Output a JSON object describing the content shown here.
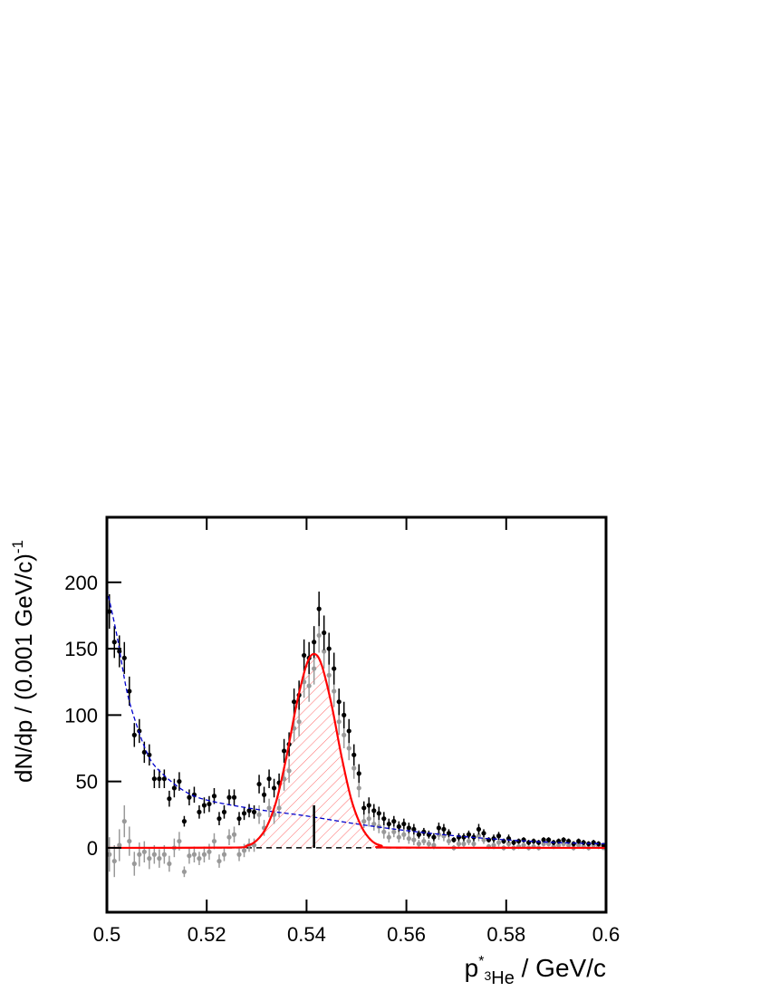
{
  "chart_data": {
    "type": "scatter",
    "xlabel": {
      "base": "p",
      "star": "*",
      "pre_sub": "3",
      "sub": "He",
      "rest": " / GeV/c"
    },
    "ylabel": {
      "text": "dN/dp / (0.001 GeV/c)",
      "exponent": "-1"
    },
    "xlim": [
      0.5,
      0.6
    ],
    "ylim": [
      -48.5,
      249
    ],
    "xticks": [
      0.5,
      0.52,
      0.54,
      0.56,
      0.58,
      0.6
    ],
    "yticks": [
      0,
      50,
      100,
      150,
      200
    ],
    "x": [
      0.5005,
      0.5015,
      0.5025,
      0.5035,
      0.5045,
      0.5055,
      0.5065,
      0.5075,
      0.5085,
      0.5095,
      0.5105,
      0.5115,
      0.5125,
      0.5135,
      0.5145,
      0.5155,
      0.5165,
      0.5175,
      0.5185,
      0.5195,
      0.5205,
      0.5215,
      0.5225,
      0.5235,
      0.5245,
      0.5255,
      0.5265,
      0.5275,
      0.5285,
      0.5295,
      0.5305,
      0.5315,
      0.5325,
      0.5335,
      0.5345,
      0.5355,
      0.5365,
      0.5375,
      0.5385,
      0.5395,
      0.5405,
      0.5415,
      0.5425,
      0.5435,
      0.5445,
      0.5455,
      0.5465,
      0.5475,
      0.5485,
      0.5495,
      0.5505,
      0.5515,
      0.5525,
      0.5535,
      0.5545,
      0.5555,
      0.5565,
      0.5575,
      0.5585,
      0.5595,
      0.5605,
      0.5615,
      0.5625,
      0.5635,
      0.5645,
      0.5655,
      0.5665,
      0.5675,
      0.5685,
      0.5695,
      0.5705,
      0.5715,
      0.5725,
      0.5735,
      0.5745,
      0.5755,
      0.5765,
      0.5775,
      0.5785,
      0.5795,
      0.5805,
      0.5815,
      0.5825,
      0.5835,
      0.5845,
      0.5855,
      0.5865,
      0.5875,
      0.5885,
      0.5895,
      0.5905,
      0.5915,
      0.5925,
      0.5935,
      0.5945,
      0.5955,
      0.5965,
      0.5975,
      0.5985,
      0.5995
    ],
    "series": [
      {
        "color": "#999999",
        "values": [
          -5,
          -10,
          2,
          20,
          5,
          -12,
          -5,
          -3,
          -8,
          -5,
          -8,
          -5,
          -12,
          0,
          5,
          -18,
          -6,
          -5,
          -8,
          -5,
          -3,
          5,
          -10,
          -5,
          8,
          10,
          -5,
          -2,
          2,
          2,
          25,
          15,
          30,
          25,
          30,
          52,
          58,
          90,
          95,
          125,
          122,
          135,
          160,
          148,
          130,
          118,
          95,
          85,
          75,
          60,
          45,
          20,
          22,
          18,
          16,
          12,
          8,
          12,
          8,
          10,
          7,
          6,
          3,
          5,
          3,
          2,
          10,
          9,
          5,
          0,
          3,
          3,
          5,
          3,
          9,
          6,
          1,
          2,
          4,
          0,
          3,
          0,
          1,
          2,
          0,
          1,
          0,
          3,
          3,
          1,
          2,
          3,
          2,
          0,
          2,
          1,
          0,
          2,
          1,
          0
        ],
        "errors": [
          13,
          12,
          12,
          12,
          11,
          9,
          9,
          8,
          8,
          7,
          7,
          7,
          6,
          7,
          7,
          4,
          6,
          6,
          5,
          6,
          6,
          6,
          5,
          5,
          6,
          6,
          5,
          5,
          5,
          5,
          7,
          6,
          7,
          7,
          7,
          9,
          9,
          10,
          11,
          12,
          12,
          12,
          13,
          13,
          12,
          12,
          10,
          10,
          9,
          8,
          7,
          5,
          6,
          5,
          5,
          5,
          4,
          4,
          4,
          4,
          4,
          4,
          3,
          3,
          3,
          3,
          4,
          4,
          3,
          2,
          3,
          3,
          3,
          3,
          4,
          3,
          2,
          3,
          3,
          2,
          3,
          2,
          2,
          2,
          2,
          2,
          2,
          2,
          2,
          2,
          2,
          2,
          2,
          2,
          2,
          2,
          2,
          2,
          2,
          1
        ]
      },
      {
        "color": "#000000",
        "values": [
          178,
          155,
          148,
          143,
          118,
          85,
          88,
          72,
          70,
          52,
          52,
          52,
          37,
          45,
          50,
          20,
          38,
          40,
          27,
          32,
          33,
          39,
          22,
          27,
          38,
          38,
          22,
          26,
          28,
          27,
          48,
          40,
          52,
          45,
          49,
          73,
          78,
          110,
          115,
          145,
          143,
          155,
          180,
          162,
          150,
          135,
          110,
          100,
          88,
          70,
          56,
          30,
          32,
          28,
          26,
          22,
          18,
          20,
          16,
          18,
          15,
          14,
          10,
          12,
          10,
          8,
          15,
          14,
          11,
          6,
          8,
          8,
          10,
          8,
          14,
          11,
          6,
          7,
          9,
          5,
          7,
          4,
          5,
          6,
          4,
          5,
          4,
          6,
          6,
          4,
          5,
          6,
          5,
          3,
          5,
          4,
          3,
          4,
          3,
          2
        ],
        "errors": [
          13,
          12,
          12,
          12,
          11,
          9,
          9,
          8,
          8,
          7,
          7,
          7,
          6,
          7,
          7,
          4,
          6,
          6,
          5,
          6,
          6,
          6,
          5,
          5,
          6,
          6,
          5,
          5,
          5,
          5,
          7,
          6,
          7,
          7,
          7,
          9,
          9,
          10,
          11,
          12,
          12,
          12,
          13,
          13,
          12,
          12,
          10,
          10,
          9,
          8,
          7,
          5,
          6,
          5,
          5,
          5,
          4,
          4,
          4,
          4,
          4,
          4,
          3,
          3,
          3,
          3,
          4,
          4,
          3,
          2,
          3,
          3,
          3,
          3,
          4,
          3,
          2,
          3,
          3,
          2,
          3,
          2,
          2,
          2,
          2,
          2,
          2,
          2,
          2,
          2,
          2,
          2,
          2,
          2,
          2,
          2,
          2,
          2,
          2,
          1
        ]
      }
    ],
    "fits": [
      {
        "color": "#0000cc",
        "style": "dashed",
        "x": [
          0.5,
          0.502,
          0.504,
          0.506,
          0.508,
          0.51,
          0.515,
          0.52,
          0.53,
          0.54,
          0.55,
          0.56,
          0.57,
          0.58,
          0.59,
          0.6
        ],
        "values": [
          195,
          160,
          118,
          92,
          72,
          60,
          44,
          36,
          29,
          24,
          18,
          13,
          9,
          6,
          4,
          3
        ]
      },
      {
        "color": "#ff0000",
        "style": "solid",
        "fill": "hatch",
        "x": [
          0.5,
          0.525,
          0.528,
          0.53,
          0.532,
          0.534,
          0.536,
          0.538,
          0.54,
          0.5415,
          0.543,
          0.545,
          0.547,
          0.549,
          0.551,
          0.553,
          0.555,
          0.558,
          0.6
        ],
        "values": [
          0,
          0.2,
          1.6,
          5.5,
          15.7,
          36,
          69,
          108,
          138,
          146,
          138,
          108,
          69,
          36,
          16,
          5.5,
          1.6,
          0.2,
          0
        ]
      }
    ],
    "baseline": 0,
    "reference_line": {
      "x": 0.5415,
      "y": [
        0,
        32
      ]
    }
  }
}
